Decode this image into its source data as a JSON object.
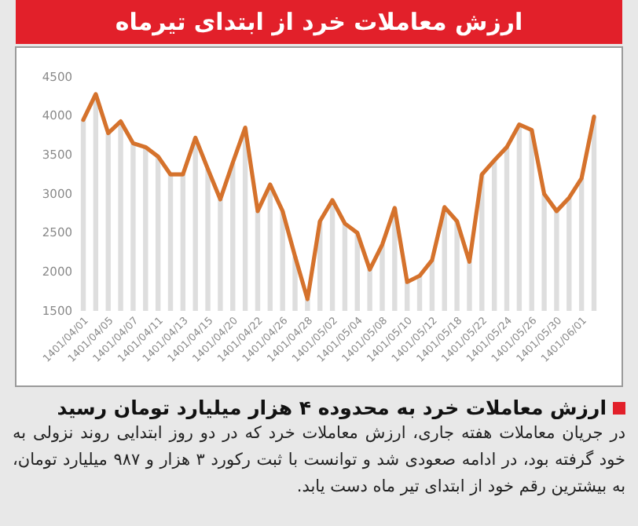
{
  "chart_data": {
    "type": "line",
    "title": "ارزش معاملات خرد از ابتدای تیرماه",
    "subtitle": "ارزش معاملات خرد به محدوده ۴ هزار میلیارد تومان رسید",
    "annotations": [
      "در جریان معاملات هفته جاری، ارزش معاملات خرد که در دو روز ابتدایی روند نزولی به خود گرفته بود، در ادامه صعودی شد و توانست با ثبت رکورد ۳ هزار و ۹۸۷ میلیارد تومان، به بیشترین رقم خود از ابتدای تیر ماه دست یابد."
    ],
    "categories": [
      "1401/04/01",
      null,
      "1401/04/05",
      null,
      "1401/04/07",
      null,
      "1401/04/11",
      null,
      "1401/04/13",
      null,
      "1401/04/15",
      null,
      "1401/04/20",
      null,
      "1401/04/22",
      null,
      "1401/04/26",
      null,
      "1401/04/28",
      null,
      "1401/05/02",
      null,
      "1401/05/04",
      null,
      "1401/05/08",
      null,
      "1401/05/10",
      null,
      "1401/05/12",
      null,
      "1401/05/18",
      null,
      "1401/05/22",
      null,
      "1401/05/24",
      null,
      "1401/05/26",
      null,
      "1401/05/30",
      null,
      "1401/06/01",
      null
    ],
    "series": [
      {
        "type": "bar",
        "color": "#dedede",
        "values": [
          3950,
          4280,
          3780,
          3930,
          3650,
          3600,
          3480,
          3250,
          3250,
          3720,
          3320,
          2930,
          3400,
          3850,
          2780,
          3120,
          2780,
          2200,
          1650,
          2650,
          2920,
          2620,
          2500,
          2030,
          2350,
          2820,
          1870,
          1950,
          2150,
          2830,
          2650,
          2130,
          3250,
          3430,
          3600,
          3890,
          3820,
          3000,
          2780,
          2950,
          3200,
          3990
        ]
      },
      {
        "color": "#d5722c",
        "values": [
          3950,
          4280,
          3780,
          3930,
          3650,
          3600,
          3480,
          3250,
          3250,
          3720,
          3320,
          2930,
          3400,
          3850,
          2780,
          3120,
          2780,
          2200,
          1650,
          2650,
          2920,
          2620,
          2500,
          2030,
          2350,
          2820,
          1870,
          1950,
          2150,
          2830,
          2650,
          2130,
          3250,
          3430,
          3600,
          3890,
          3820,
          3000,
          2780,
          2950,
          3200,
          3990
        ]
      }
    ],
    "ylim": [
      1500,
      4500
    ],
    "yticks": [
      1500,
      2000,
      2500,
      3000,
      3500,
      4000,
      4500
    ]
  }
}
